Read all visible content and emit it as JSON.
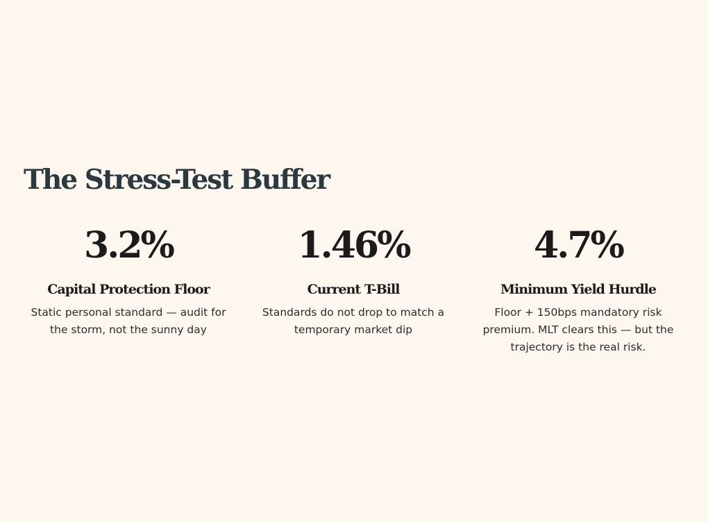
{
  "section": {
    "title": "The Stress-Test Buffer"
  },
  "stats": [
    {
      "value": "3.2%",
      "label": "Capital Protection Floor",
      "description": "Static personal standard — audit for the storm, not the sunny day"
    },
    {
      "value": "1.46%",
      "label": "Current T-Bill",
      "description": "Standards do not drop to match a temporary market dip"
    },
    {
      "value": "4.7%",
      "label": "Minimum Yield Hurdle",
      "description": "Floor + 150bps mandatory risk premium. MLT clears this — but the trajectory is the real risk."
    }
  ]
}
